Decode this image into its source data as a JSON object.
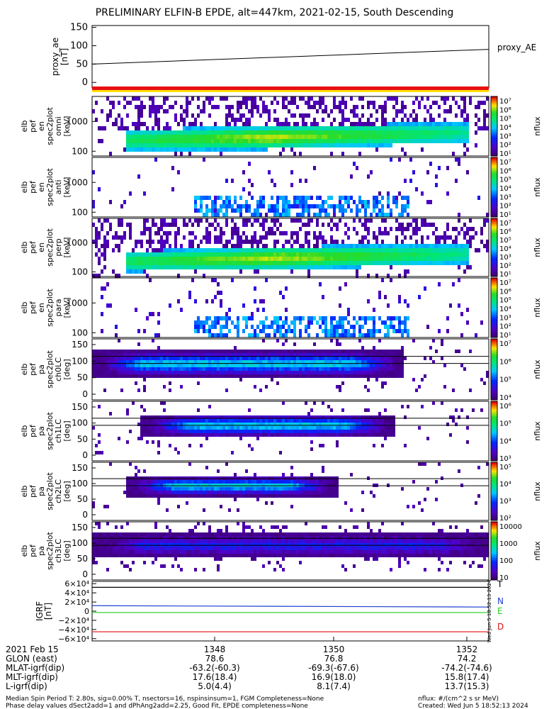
{
  "title": "PRELIMINARY ELFIN-B EPDE, alt=447km, 2021-02-15, South Descending",
  "proxy_panel": {
    "ylabel": [
      "proxy_ae",
      "[nT]"
    ],
    "yticks": [
      "150",
      "100",
      "50",
      "0"
    ],
    "legend": "proxy_AE",
    "line": {
      "start": 50,
      "end": 90
    },
    "ylim": [
      -15,
      155
    ]
  },
  "spectrogram_panels": [
    {
      "id": "omni",
      "ylabel": [
        "elb",
        "pef",
        "en",
        "spec2plot",
        "omni",
        "[keV]"
      ],
      "yticks": [
        "1000",
        "100"
      ],
      "colorbar_unit": "nflux",
      "colorbar_ticks": [
        "10⁷",
        "10⁶",
        "10⁵",
        "10⁴",
        "10³",
        "10²",
        "10¹"
      ]
    },
    {
      "id": "anti",
      "ylabel": [
        "elb",
        "pef",
        "en",
        "spec2plot",
        "anti",
        "[keV]"
      ],
      "yticks": [
        "1000",
        "100"
      ],
      "colorbar_unit": "nflux",
      "colorbar_ticks": [
        "10⁷",
        "10⁶",
        "10⁵",
        "10⁴",
        "10³",
        "10²",
        "10¹"
      ]
    },
    {
      "id": "perp",
      "ylabel": [
        "elb",
        "pef",
        "en",
        "spec2plot",
        "perp",
        "[keV]"
      ],
      "yticks": [
        "1000",
        "100"
      ],
      "colorbar_unit": "nflux",
      "colorbar_ticks": [
        "10⁷",
        "10⁶",
        "10⁵",
        "10⁴",
        "10³",
        "10²",
        "10¹"
      ]
    },
    {
      "id": "para",
      "ylabel": [
        "elb",
        "pef",
        "en",
        "spec2plot",
        "para",
        "[keV]"
      ],
      "yticks": [
        "1000",
        "100"
      ],
      "colorbar_unit": "nflux",
      "colorbar_ticks": [
        "10⁷",
        "10⁶",
        "10⁵",
        "10⁴",
        "10³",
        "10²",
        "10¹"
      ]
    },
    {
      "id": "ch0LC",
      "ylabel": [
        "elb",
        "pef",
        "pa",
        "spec2plot",
        "ch0LC",
        "[deg]"
      ],
      "yticks": [
        "150",
        "100",
        "50",
        "0"
      ],
      "colorbar_unit": "nflux",
      "colorbar_ticks": [
        "10⁷",
        "10⁶",
        "10⁵",
        "10⁴"
      ]
    },
    {
      "id": "ch1LC",
      "ylabel": [
        "elb",
        "pef",
        "pa",
        "spec2plot",
        "ch1LC",
        "[deg]"
      ],
      "yticks": [
        "150",
        "100",
        "50",
        "0"
      ],
      "colorbar_unit": "nflux",
      "colorbar_ticks": [
        "10⁶",
        "10⁵",
        "10⁴",
        "10³"
      ]
    },
    {
      "id": "ch2LC",
      "ylabel": [
        "elb",
        "pef",
        "pa",
        "spec2plot",
        "ch2LC",
        "[deg]"
      ],
      "yticks": [
        "150",
        "100",
        "50",
        "0"
      ],
      "colorbar_unit": "nflux",
      "colorbar_ticks": [
        "10⁵",
        "10⁴",
        "10³",
        "10²"
      ]
    },
    {
      "id": "ch3LC",
      "ylabel": [
        "elb",
        "pef",
        "pa",
        "spec2plot",
        "ch3LC",
        "[deg]"
      ],
      "yticks": [
        "150",
        "100",
        "50",
        "0"
      ],
      "colorbar_unit": "nflux",
      "colorbar_ticks": [
        "10000",
        "1000",
        "100",
        "10"
      ]
    }
  ],
  "igrf_panel": {
    "ylabel": [
      "IGRF",
      "[nT]"
    ],
    "yticks": [
      "6×10⁴",
      "4×10⁴",
      "2×10⁴",
      "0",
      "−2×10⁴",
      "−4×10⁴",
      "−6×10⁴"
    ],
    "legend": [
      {
        "label": "T",
        "color": "#000000"
      },
      {
        "label": "N",
        "color": "#1f3fd0"
      },
      {
        "label": "E",
        "color": "#22cc22"
      },
      {
        "label": "D",
        "color": "#e01010"
      }
    ],
    "side_text": "Wed Jun 5 18:52:13 2024"
  },
  "chart_data": [
    {
      "type": "line",
      "title": "",
      "series": [
        {
          "name": "proxy_AE",
          "values": [
            50,
            90
          ]
        }
      ],
      "ylim": [
        -15,
        155
      ]
    },
    {
      "type": "heatmap",
      "ylabel": "elb pef en spec2plot omni [keV]"
    },
    {
      "type": "heatmap",
      "ylabel": "elb pef en spec2plot anti [keV]"
    },
    {
      "type": "heatmap",
      "ylabel": "elb pef en spec2plot perp [keV]"
    },
    {
      "type": "heatmap",
      "ylabel": "elb pef en spec2plot para [keV]"
    },
    {
      "type": "heatmap",
      "ylabel": "elb pef pa spec2plot ch0LC [deg]"
    },
    {
      "type": "heatmap",
      "ylabel": "elb pef pa spec2plot ch1LC [deg]"
    },
    {
      "type": "heatmap",
      "ylabel": "elb pef pa spec2plot ch2LC [deg]"
    },
    {
      "type": "heatmap",
      "ylabel": "elb pef pa spec2plot ch3LC [deg]"
    },
    {
      "type": "line",
      "ylabel": "IGRF [nT]",
      "series": [
        {
          "name": "T",
          "values": [
            52000,
            52000
          ]
        },
        {
          "name": "N",
          "values": [
            12000,
            9000
          ]
        },
        {
          "name": "E",
          "values": [
            -3000,
            -3000
          ]
        },
        {
          "name": "D",
          "values": [
            -45000,
            -45000
          ]
        }
      ]
    }
  ],
  "xaxis": {
    "tick_labels": [
      "1348",
      "1350",
      "1352"
    ],
    "rows": [
      {
        "label": "2021 Feb 15",
        "values": [
          "1348",
          "1350",
          "1352"
        ]
      },
      {
        "label": "GLON (east)",
        "values": [
          "78.6",
          "76.8",
          "74.2"
        ]
      },
      {
        "label": "MLAT-igrf(dip)",
        "values": [
          "-63.2(-60.3)",
          "-69.3(-67.6)",
          "-74.2(-74.6)"
        ]
      },
      {
        "label": "MLT-igrf(dip)",
        "values": [
          "17.6(18.4)",
          "16.9(18.0)",
          "15.8(17.4)"
        ]
      },
      {
        "label": "L-igrf(dip)",
        "values": [
          "5.0(4.4)",
          "8.1(7.4)",
          "13.7(15.3)"
        ]
      }
    ]
  },
  "footer": {
    "left_line1": "Median Spin Period T: 2.80s, sig=0.00% T, nsectors=16, nspinsinsum=1, FGM Completeness=None",
    "left_line2": "Phase delay values dSect2add=1 and dPhAng2add=2.25, Good Fit, EPDE completeness=None",
    "right_line1": "nflux: #/(cm^2 s sr MeV)",
    "right_line2": "Created: Wed Jun  5 18:52:13 2024"
  }
}
